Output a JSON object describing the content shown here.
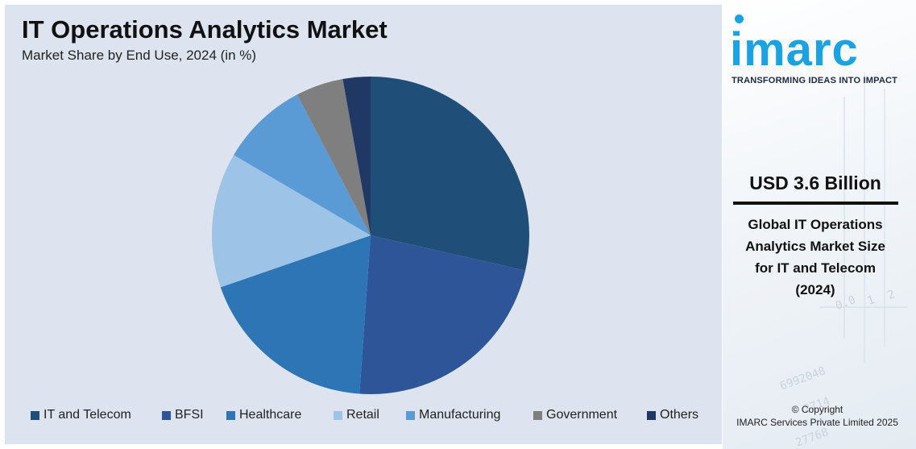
{
  "chart_data": {
    "type": "pie",
    "title": "IT Operations Analytics Market",
    "subtitle": "Market Share by End Use, 2024 (in %)",
    "categories": [
      "IT and Telecom",
      "BFSI",
      "Healthcare",
      "Retail",
      "Manufacturing",
      "Government",
      "Others"
    ],
    "values": [
      29.5,
      23.3,
      19.2,
      14.2,
      9.2,
      5.0,
      2.9
    ],
    "colors": [
      "#1f4e79",
      "#2e5597",
      "#2e75b6",
      "#9dc3e6",
      "#5b9bd5",
      "#7f7f7f",
      "#203864"
    ],
    "legend_position": "bottom"
  },
  "brand": {
    "logo": "imarc",
    "tagline": "TRANSFORMING IDEAS INTO IMPACT"
  },
  "kpi": {
    "value": "USD 3.6 Billion",
    "caption_lines": [
      "Global IT Operations",
      "Analytics Market Size",
      "for IT and Telecom",
      "(2024)"
    ]
  },
  "footer": {
    "copyright_line1": "© Copyright",
    "copyright_line2": "IMARC Services Private Limited 2025"
  },
  "decor": {
    "texts": [
      "0.0",
      "1",
      "2",
      "6992048",
      "2714",
      "27768"
    ]
  }
}
